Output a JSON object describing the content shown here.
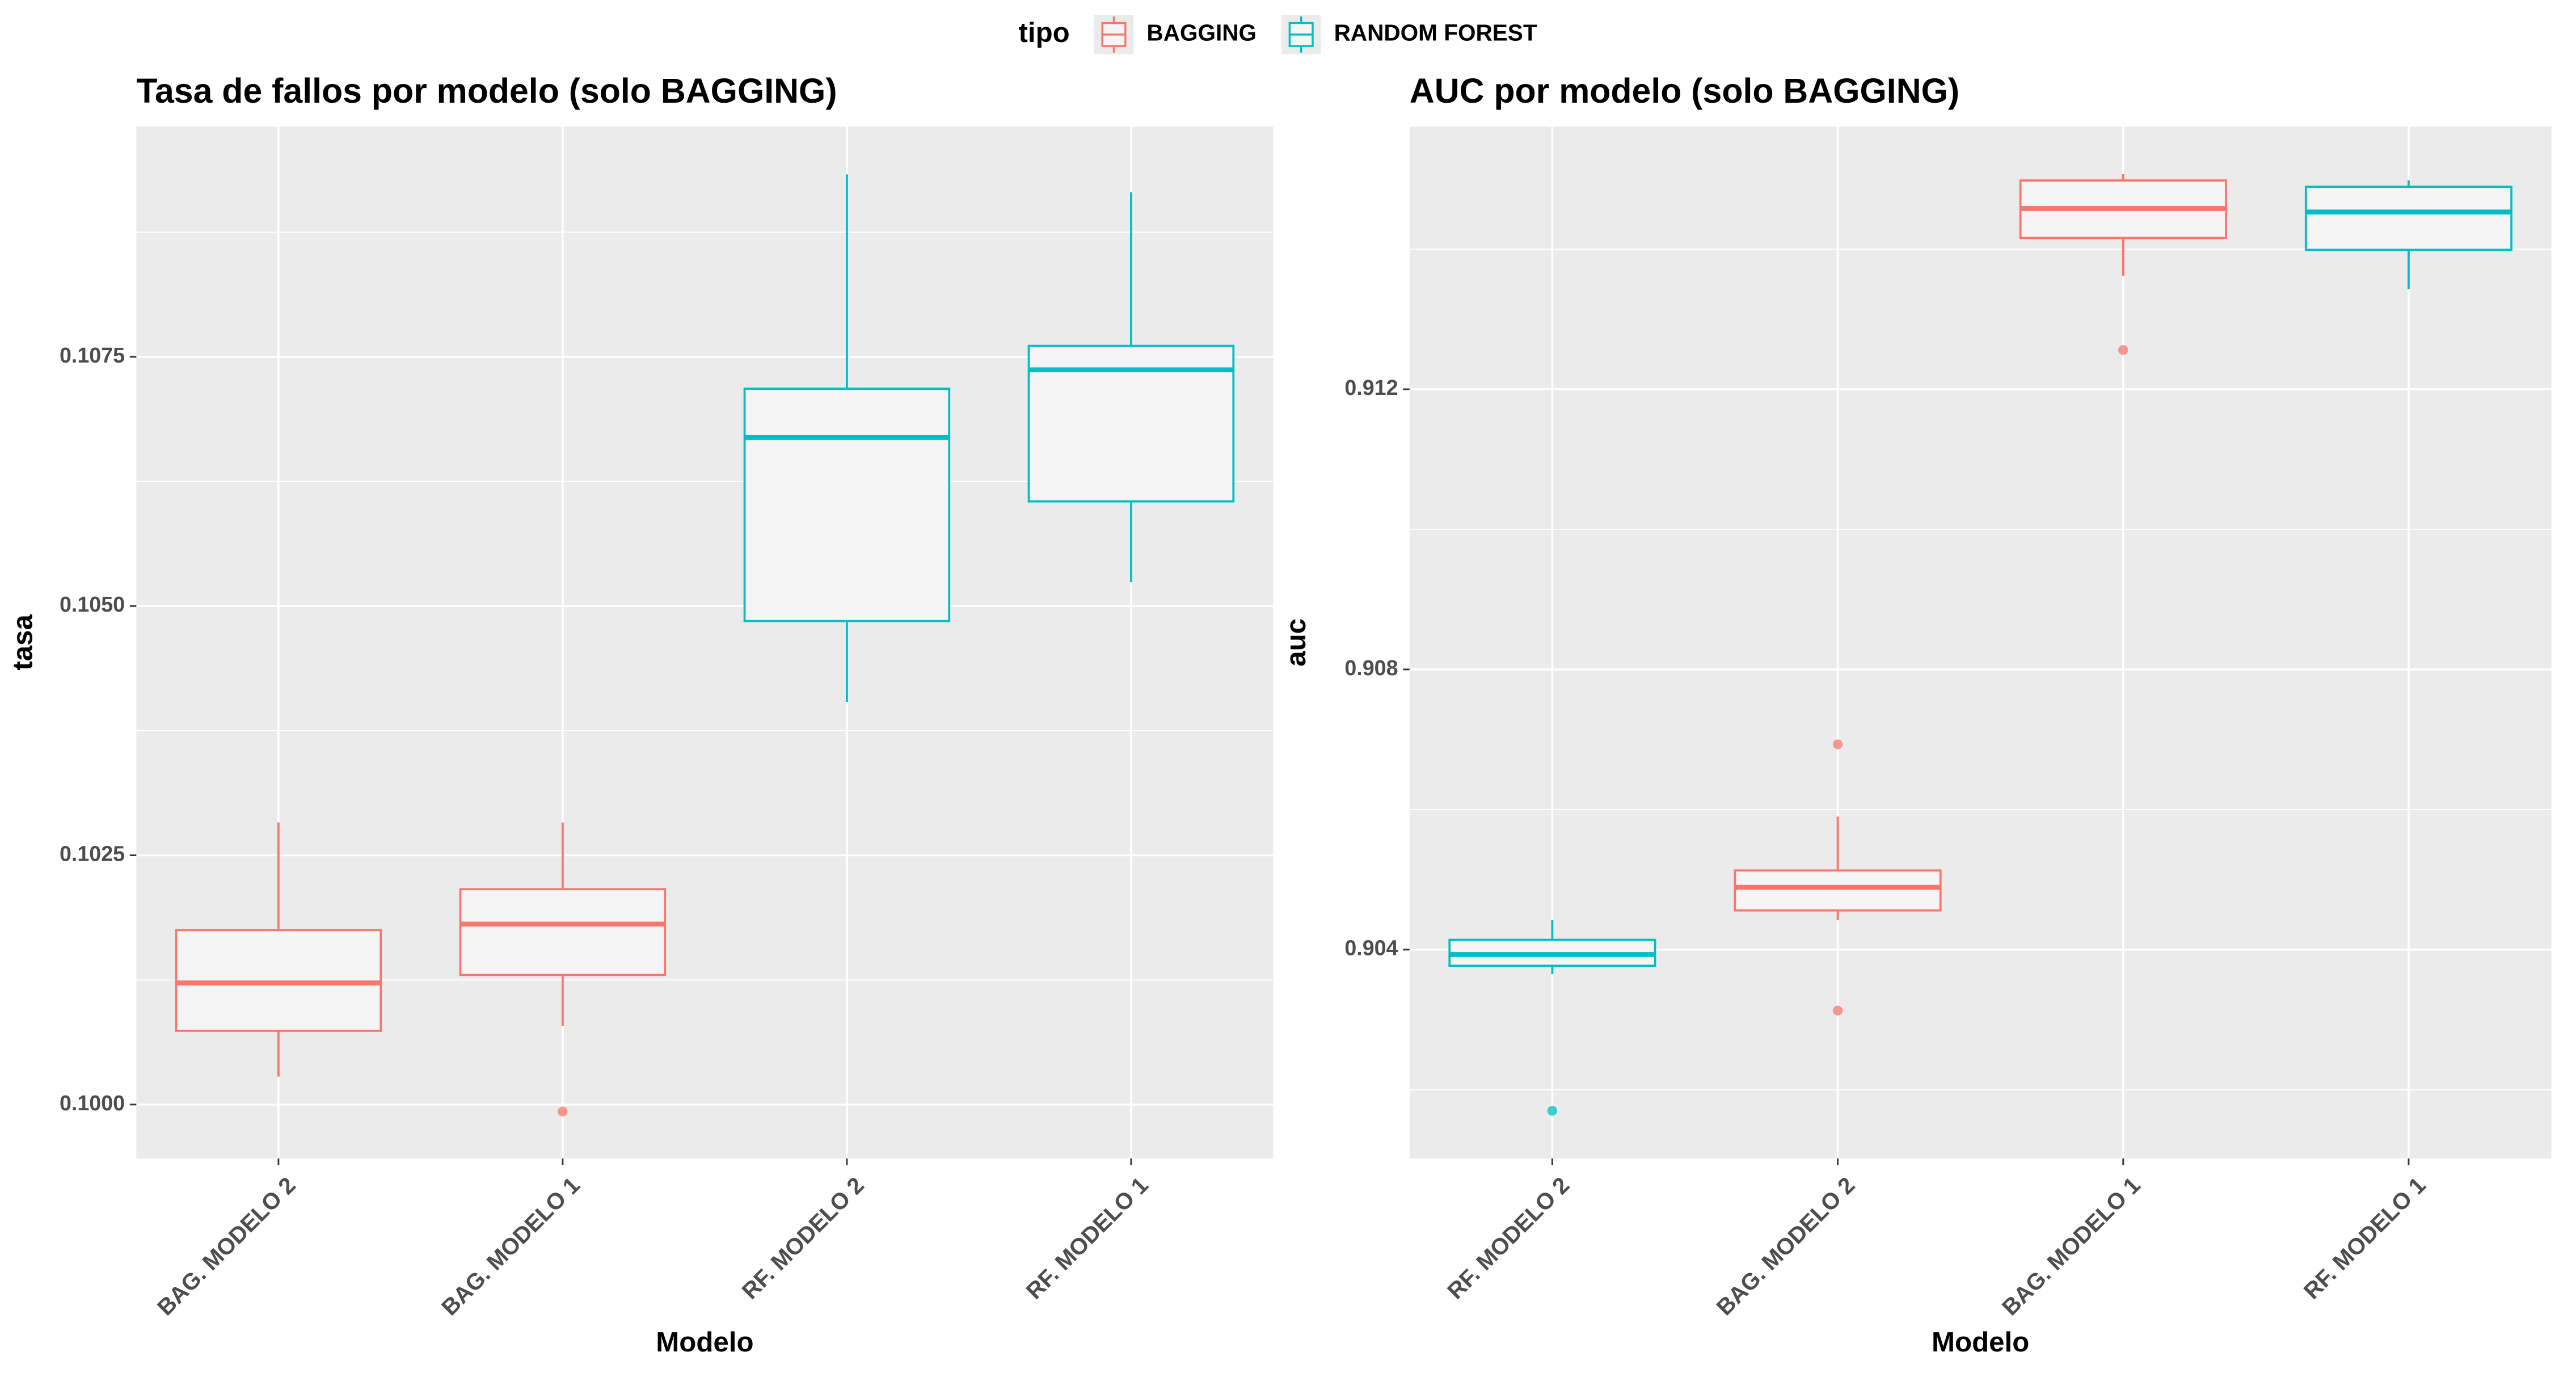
{
  "legend": {
    "title": "tipo",
    "items": [
      {
        "name": "BAGGING",
        "color": "#f8766d"
      },
      {
        "name": "RANDOM FOREST",
        "color": "#00bfc4"
      }
    ]
  },
  "chart_data": [
    {
      "type": "box",
      "title": "Tasa de fallos por modelo (solo BAGGING)",
      "xlabel": "Modelo",
      "ylabel": "tasa",
      "categories": [
        "BAG. MODELO 2",
        "BAG. MODELO 1",
        "RF. MODELO 2",
        "RF. MODELO 1"
      ],
      "boxes": [
        {
          "tipo": 0,
          "min": 0.10028,
          "q1": 0.10074,
          "median": 0.10122,
          "q3": 0.10175,
          "max": 0.10283,
          "outliers": []
        },
        {
          "tipo": 0,
          "min": 0.10079,
          "q1": 0.1013,
          "median": 0.10181,
          "q3": 0.10216,
          "max": 0.10283,
          "outliers": [
            0.09993
          ]
        },
        {
          "tipo": 1,
          "min": 0.10404,
          "q1": 0.10485,
          "median": 0.10669,
          "q3": 0.10718,
          "max": 0.10933,
          "outliers": []
        },
        {
          "tipo": 1,
          "min": 0.10524,
          "q1": 0.10605,
          "median": 0.10737,
          "q3": 0.10761,
          "max": 0.10915,
          "outliers": []
        }
      ],
      "ylim": [
        0.09946,
        0.10981
      ],
      "yticks": [
        {
          "value": 0.1,
          "label": "0.1000"
        },
        0.1025,
        {
          "value": 0.105,
          "label": "0.1050"
        },
        0.1075
      ],
      "grid": true
    },
    {
      "type": "box",
      "title": "AUC por modelo (solo BAGGING)",
      "xlabel": "Modelo",
      "ylabel": "auc",
      "categories": [
        "RF. MODELO 2",
        "BAG. MODELO 2",
        "BAG. MODELO 1",
        "RF. MODELO 1"
      ],
      "boxes": [
        {
          "tipo": 1,
          "min": 0.90365,
          "q1": 0.90377,
          "median": 0.90393,
          "q3": 0.90414,
          "max": 0.90442,
          "outliers": [
            0.9017
          ]
        },
        {
          "tipo": 0,
          "min": 0.90442,
          "q1": 0.90456,
          "median": 0.90489,
          "q3": 0.90513,
          "max": 0.9059,
          "outliers": [
            0.90693,
            0.90313
          ]
        },
        {
          "tipo": 0,
          "min": 0.91362,
          "q1": 0.91416,
          "median": 0.91458,
          "q3": 0.91498,
          "max": 0.91507,
          "outliers": [
            0.91256
          ]
        },
        {
          "tipo": 1,
          "min": 0.91343,
          "q1": 0.91399,
          "median": 0.91453,
          "q3": 0.91489,
          "max": 0.91498,
          "outliers": []
        }
      ],
      "ylim": [
        0.90102,
        0.91575
      ],
      "yticks": [
        0.904,
        0.908,
        0.912
      ],
      "grid": true
    }
  ]
}
